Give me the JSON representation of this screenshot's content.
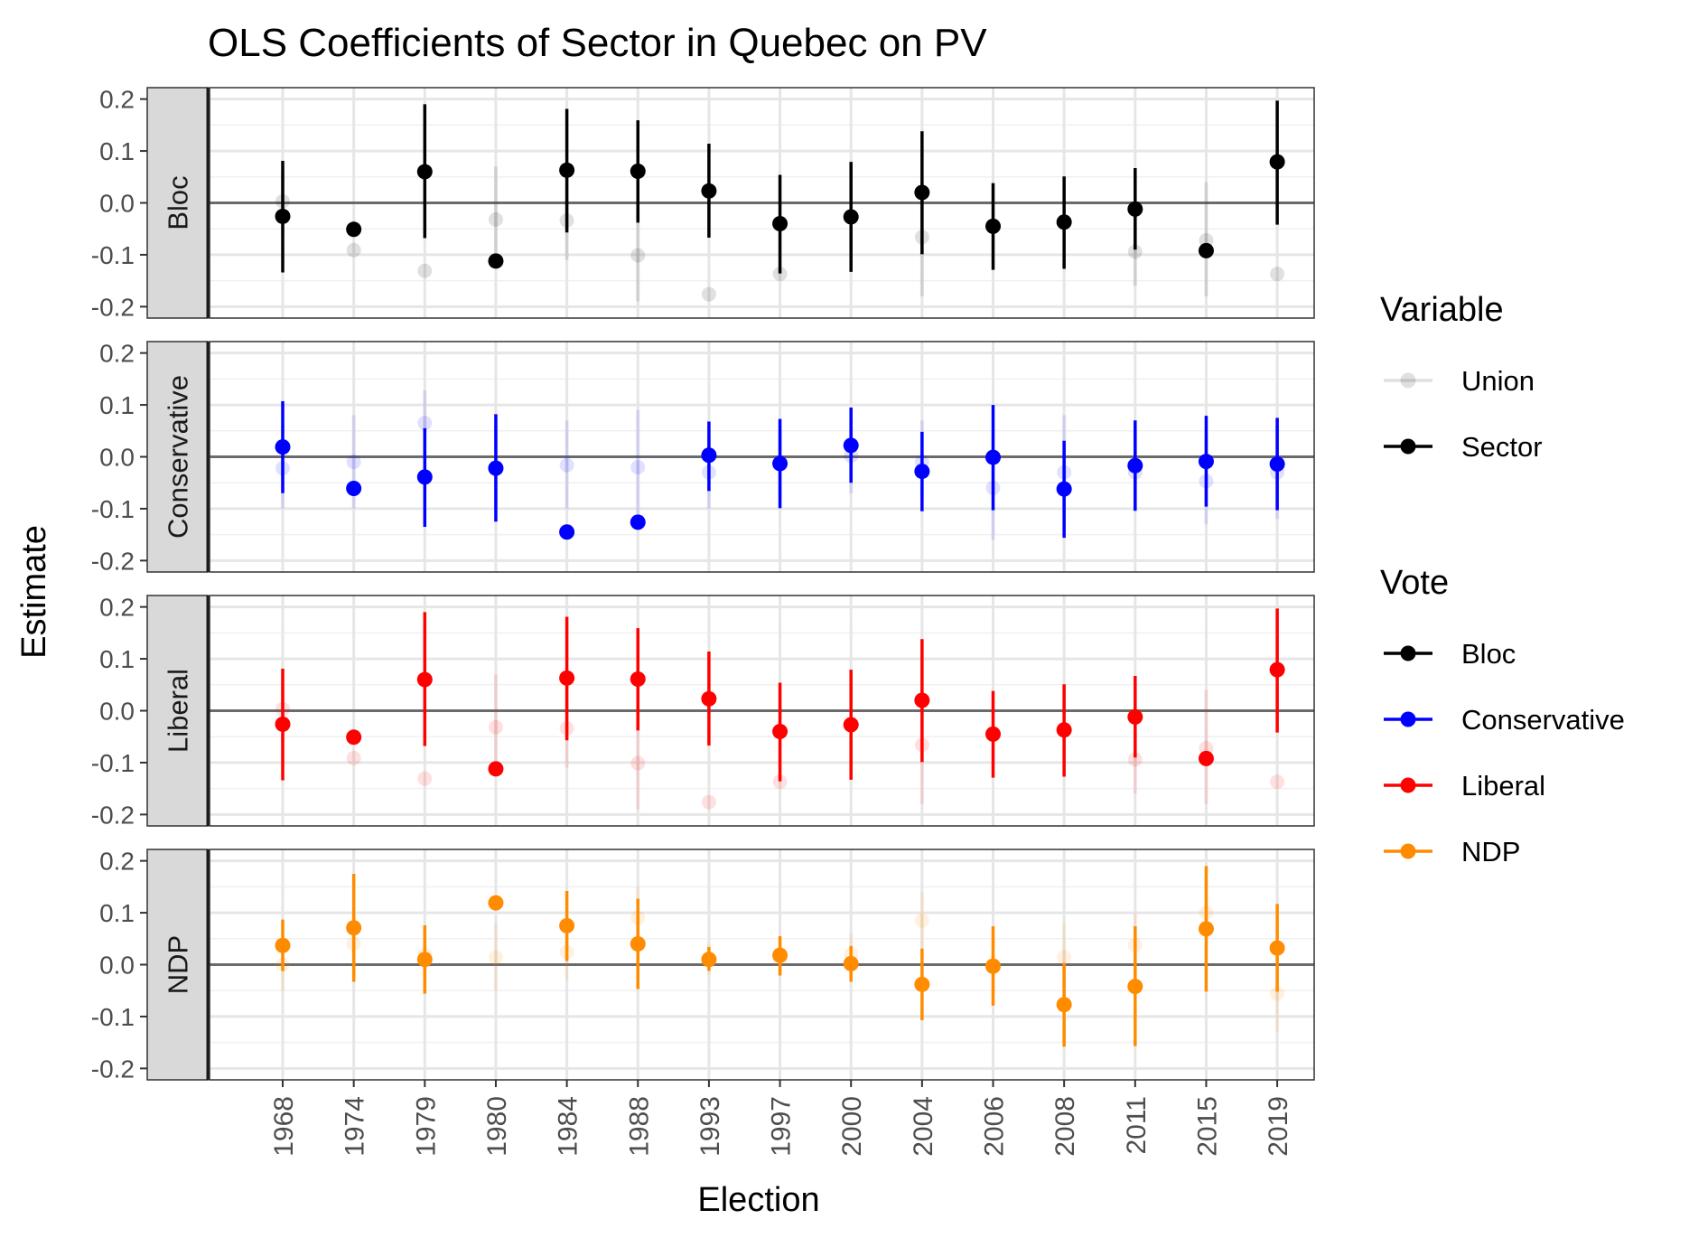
{
  "chart_data": {
    "type": "scatter",
    "title": "OLS Coefficients of Sector in Quebec on PV",
    "xlabel": "Election",
    "ylabel": "Estimate",
    "ylim": [
      -0.2,
      0.2
    ],
    "yticks": [
      -0.2,
      -0.1,
      0.0,
      0.1,
      0.2
    ],
    "ytick_labels": [
      "-0.2",
      "-0.1",
      "0.0",
      "0.1",
      "0.2"
    ],
    "categories": [
      "1968",
      "1974",
      "1979",
      "1980",
      "1984",
      "1988",
      "1993",
      "1997",
      "2000",
      "2004",
      "2006",
      "2008",
      "2011",
      "2015",
      "2019"
    ],
    "grid": true,
    "reference_line": 0,
    "legends": [
      {
        "title": "Variable",
        "items": [
          {
            "label": "Union",
            "color": "#000000",
            "faded": true
          },
          {
            "label": "Sector",
            "color": "#000000",
            "faded": false
          }
        ]
      },
      {
        "title": "Vote",
        "items": [
          {
            "label": "Bloc",
            "color": "#000000"
          },
          {
            "label": "Conservative",
            "color": "#0000ff"
          },
          {
            "label": "Liberal",
            "color": "#ff0000"
          },
          {
            "label": "NDP",
            "color": "#ff8c00"
          }
        ]
      }
    ],
    "legend_position": "right",
    "panels": [
      {
        "name": "Bloc",
        "color": "#000000",
        "sector": {
          "estimate": [
            -0.026,
            -0.051,
            0.06,
            -0.112,
            0.063,
            0.061,
            0.023,
            -0.04,
            -0.027,
            0.02,
            -0.045,
            -0.037,
            -0.012,
            -0.092,
            0.079
          ],
          "lower": [
            -0.134,
            null,
            -0.068,
            null,
            -0.057,
            -0.038,
            -0.067,
            -0.136,
            -0.133,
            -0.099,
            -0.129,
            -0.127,
            -0.09,
            null,
            -0.042
          ],
          "upper": [
            0.081,
            null,
            0.19,
            null,
            0.181,
            0.159,
            0.114,
            0.054,
            0.079,
            0.138,
            0.038,
            0.051,
            0.067,
            null,
            0.197
          ]
        },
        "union": {
          "estimate": [
            0.003,
            -0.091,
            -0.131,
            -0.032,
            -0.034,
            -0.101,
            -0.176,
            -0.137,
            -0.027,
            -0.066,
            -0.045,
            -0.037,
            -0.094,
            -0.072,
            -0.137
          ],
          "lower": [
            -0.06,
            null,
            null,
            -0.11,
            -0.11,
            -0.19,
            null,
            null,
            null,
            -0.18,
            null,
            null,
            -0.16,
            -0.18,
            null
          ],
          "upper": [
            0.06,
            null,
            null,
            0.07,
            0.05,
            0.0,
            null,
            null,
            null,
            0.04,
            null,
            null,
            0.0,
            0.04,
            null
          ]
        }
      },
      {
        "name": "Conservative",
        "color": "#0000ff",
        "sector": {
          "estimate": [
            0.019,
            -0.061,
            -0.039,
            -0.022,
            -0.145,
            -0.126,
            0.003,
            -0.013,
            0.022,
            -0.028,
            -0.001,
            -0.062,
            -0.017,
            -0.009,
            -0.014
          ],
          "lower": [
            -0.07,
            null,
            -0.135,
            -0.125,
            null,
            null,
            -0.066,
            -0.099,
            -0.05,
            -0.105,
            -0.103,
            -0.156,
            -0.104,
            -0.096,
            -0.103
          ],
          "upper": [
            0.107,
            null,
            0.055,
            0.082,
            null,
            null,
            0.068,
            0.073,
            0.095,
            0.048,
            0.1,
            0.031,
            0.07,
            0.079,
            0.075
          ]
        },
        "union": {
          "estimate": [
            -0.022,
            -0.01,
            0.065,
            -0.021,
            -0.016,
            -0.02,
            -0.03,
            -0.01,
            0.002,
            -0.01,
            -0.06,
            -0.03,
            -0.03,
            -0.047,
            -0.03
          ],
          "lower": [
            -0.1,
            -0.1,
            0.0,
            -0.1,
            -0.1,
            -0.11,
            -0.1,
            -0.08,
            -0.07,
            -0.08,
            -0.16,
            -0.11,
            -0.1,
            -0.13,
            -0.12
          ],
          "upper": [
            0.06,
            0.08,
            0.128,
            0.06,
            0.07,
            0.09,
            0.04,
            0.06,
            0.07,
            0.07,
            0.04,
            0.08,
            0.05,
            0.04,
            0.06
          ]
        }
      },
      {
        "name": "Liberal",
        "color": "#ff0000",
        "sector": {
          "estimate": [
            -0.026,
            -0.051,
            0.06,
            -0.112,
            0.063,
            0.061,
            0.023,
            -0.04,
            -0.027,
            0.02,
            -0.045,
            -0.037,
            -0.012,
            -0.092,
            0.079
          ],
          "lower": [
            -0.134,
            null,
            -0.068,
            null,
            -0.057,
            -0.038,
            -0.067,
            -0.136,
            -0.133,
            -0.099,
            -0.129,
            -0.127,
            -0.09,
            null,
            -0.042
          ],
          "upper": [
            0.081,
            null,
            0.19,
            null,
            0.181,
            0.159,
            0.114,
            0.054,
            0.079,
            0.138,
            0.038,
            0.051,
            0.067,
            null,
            0.197
          ]
        },
        "union": {
          "estimate": [
            0.003,
            -0.091,
            -0.131,
            -0.032,
            -0.034,
            -0.101,
            -0.176,
            -0.137,
            -0.027,
            -0.066,
            -0.045,
            -0.037,
            -0.094,
            -0.072,
            -0.137
          ],
          "lower": [
            -0.06,
            null,
            null,
            -0.11,
            -0.11,
            -0.19,
            null,
            null,
            null,
            -0.18,
            null,
            null,
            -0.16,
            -0.18,
            null
          ],
          "upper": [
            0.06,
            null,
            null,
            0.07,
            0.05,
            0.0,
            null,
            null,
            null,
            0.04,
            null,
            null,
            0.0,
            0.04,
            null
          ]
        }
      },
      {
        "name": "NDP",
        "color": "#ff8c00",
        "sector": {
          "estimate": [
            0.037,
            0.071,
            0.01,
            0.119,
            0.075,
            0.04,
            0.01,
            0.018,
            0.002,
            -0.038,
            -0.003,
            -0.077,
            -0.042,
            0.069,
            0.032
          ],
          "lower": [
            -0.012,
            -0.033,
            -0.056,
            null,
            0.007,
            -0.047,
            -0.012,
            -0.021,
            -0.033,
            -0.107,
            -0.079,
            -0.158,
            -0.157,
            -0.052,
            -0.052
          ],
          "upper": [
            0.087,
            0.175,
            0.076,
            null,
            0.142,
            0.127,
            0.034,
            0.055,
            0.036,
            0.031,
            0.074,
            0.003,
            0.074,
            0.19,
            0.117
          ]
        },
        "union": {
          "estimate": [
            0.0,
            0.04,
            0.02,
            0.014,
            0.024,
            0.09,
            0.01,
            0.01,
            0.02,
            0.085,
            0.0,
            0.014,
            0.038,
            0.1,
            -0.056
          ],
          "lower": [
            -0.05,
            -0.02,
            -0.03,
            -0.05,
            -0.03,
            0.03,
            -0.02,
            -0.02,
            -0.02,
            0.03,
            -0.05,
            -0.06,
            -0.03,
            0.03,
            -0.13
          ],
          "upper": [
            0.05,
            0.1,
            0.07,
            0.08,
            0.08,
            0.15,
            0.04,
            0.04,
            0.06,
            0.14,
            0.05,
            0.08,
            0.1,
            0.17,
            0.02
          ]
        }
      }
    ]
  }
}
